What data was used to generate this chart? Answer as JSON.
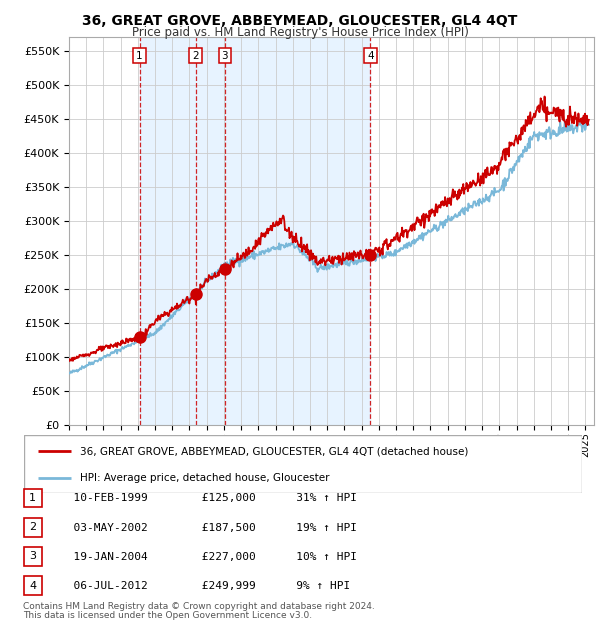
{
  "title": "36, GREAT GROVE, ABBEYMEAD, GLOUCESTER, GL4 4QT",
  "subtitle": "Price paid vs. HM Land Registry's House Price Index (HPI)",
  "legend_line1": "36, GREAT GROVE, ABBEYMEAD, GLOUCESTER, GL4 4QT (detached house)",
  "legend_line2": "HPI: Average price, detached house, Gloucester",
  "footer1": "Contains HM Land Registry data © Crown copyright and database right 2024.",
  "footer2": "This data is licensed under the Open Government Licence v3.0.",
  "transactions": [
    {
      "num": 1,
      "date": "10-FEB-1999",
      "price": 125000,
      "pct": "31%",
      "year": 1999.1
    },
    {
      "num": 2,
      "date": "03-MAY-2002",
      "price": 187500,
      "pct": "19%",
      "year": 2002.35
    },
    {
      "num": 3,
      "date": "19-JAN-2004",
      "price": 227000,
      "pct": "10%",
      "year": 2004.05
    },
    {
      "num": 4,
      "date": "06-JUL-2012",
      "price": 249999,
      "pct": "9%",
      "year": 2012.51
    }
  ],
  "hpi_color": "#7ab8d9",
  "price_color": "#cc0000",
  "marker_color": "#cc0000",
  "dashed_color": "#cc0000",
  "bg_shaded": "#ddeeff",
  "grid_color": "#cccccc",
  "ylim": [
    0,
    570000
  ],
  "yticks": [
    0,
    50000,
    100000,
    150000,
    200000,
    250000,
    300000,
    350000,
    400000,
    450000,
    500000,
    550000
  ],
  "xmin": 1995.0,
  "xmax": 2025.5
}
